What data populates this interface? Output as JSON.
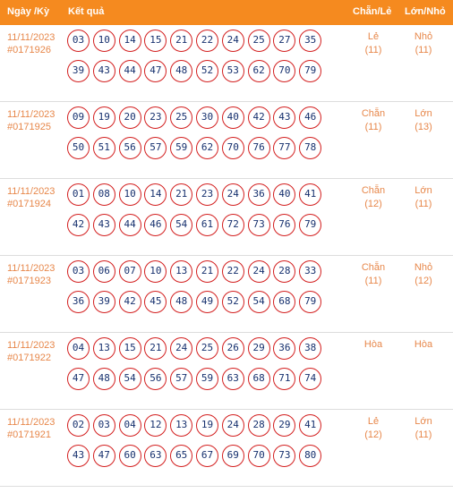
{
  "header": {
    "date_label": "Ngày /Kỳ",
    "result_label": "Kết quả",
    "parity_label": "Chẵn/Lẻ",
    "size_label": "Lớn/Nhỏ"
  },
  "colors": {
    "header_bg": "#f58a1f",
    "accent_text": "#e7874a",
    "ball_border": "#d31f1f",
    "ball_text": "#16306e"
  },
  "draws": [
    {
      "date": "11/11/2023",
      "id": "#0171926",
      "numbers": [
        "03",
        "10",
        "14",
        "15",
        "21",
        "22",
        "24",
        "25",
        "27",
        "35",
        "39",
        "43",
        "44",
        "47",
        "48",
        "52",
        "53",
        "62",
        "70",
        "79"
      ],
      "parity": "Lẻ",
      "parity_count": "(11)",
      "size": "Nhỏ",
      "size_count": "(11)"
    },
    {
      "date": "11/11/2023",
      "id": "#0171925",
      "numbers": [
        "09",
        "19",
        "20",
        "23",
        "25",
        "30",
        "40",
        "42",
        "43",
        "46",
        "50",
        "51",
        "56",
        "57",
        "59",
        "62",
        "70",
        "76",
        "77",
        "78"
      ],
      "parity": "Chẵn",
      "parity_count": "(11)",
      "size": "Lớn",
      "size_count": "(13)"
    },
    {
      "date": "11/11/2023",
      "id": "#0171924",
      "numbers": [
        "01",
        "08",
        "10",
        "14",
        "21",
        "23",
        "24",
        "36",
        "40",
        "41",
        "42",
        "43",
        "44",
        "46",
        "54",
        "61",
        "72",
        "73",
        "76",
        "79"
      ],
      "parity": "Chẵn",
      "parity_count": "(12)",
      "size": "Lớn",
      "size_count": "(11)"
    },
    {
      "date": "11/11/2023",
      "id": "#0171923",
      "numbers": [
        "03",
        "06",
        "07",
        "10",
        "13",
        "21",
        "22",
        "24",
        "28",
        "33",
        "36",
        "39",
        "42",
        "45",
        "48",
        "49",
        "52",
        "54",
        "68",
        "79"
      ],
      "parity": "Chẵn",
      "parity_count": "(11)",
      "size": "Nhỏ",
      "size_count": "(12)"
    },
    {
      "date": "11/11/2023",
      "id": "#0171922",
      "numbers": [
        "04",
        "13",
        "15",
        "21",
        "24",
        "25",
        "26",
        "29",
        "36",
        "38",
        "47",
        "48",
        "54",
        "56",
        "57",
        "59",
        "63",
        "68",
        "71",
        "74"
      ],
      "parity": "Hòa",
      "parity_count": "",
      "size": "Hòa",
      "size_count": ""
    },
    {
      "date": "11/11/2023",
      "id": "#0171921",
      "numbers": [
        "02",
        "03",
        "04",
        "12",
        "13",
        "19",
        "24",
        "28",
        "29",
        "41",
        "43",
        "47",
        "60",
        "63",
        "65",
        "67",
        "69",
        "70",
        "73",
        "80"
      ],
      "parity": "Lẻ",
      "parity_count": "(12)",
      "size": "Lớn",
      "size_count": "(11)"
    }
  ]
}
